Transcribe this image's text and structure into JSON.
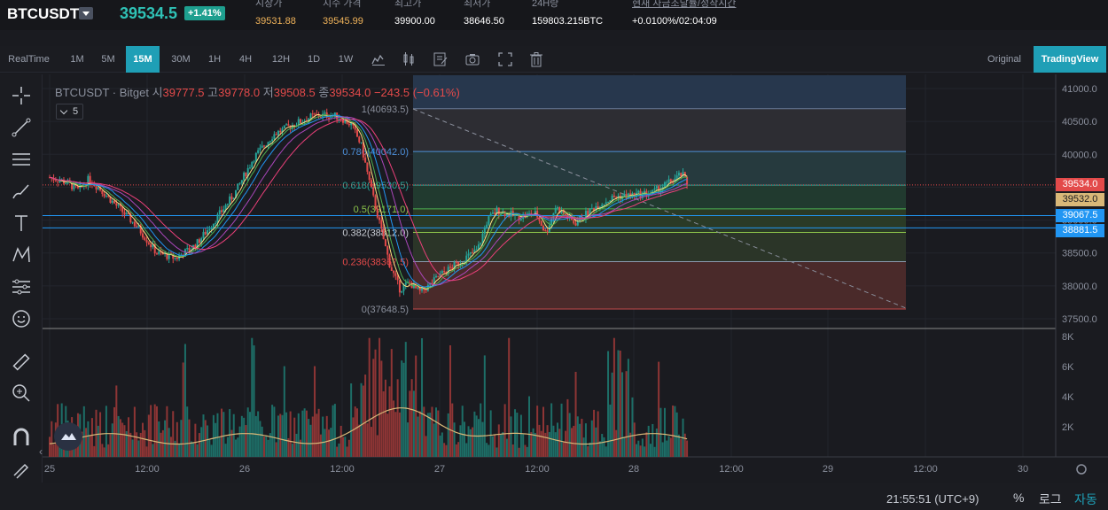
{
  "ticker": {
    "symbol": "BTCUSDT",
    "last_price": "39534.5",
    "change_pct": "+1.41%",
    "stats": [
      {
        "label": "시장가",
        "value": "39531.88",
        "color": "#f0b35a"
      },
      {
        "label": "지수 가격",
        "value": "39545.99",
        "color": "#f0b35a"
      },
      {
        "label": "최고가",
        "value": "39900.00",
        "color": "#ffffff"
      },
      {
        "label": "최저가",
        "value": "38646.50",
        "color": "#ffffff"
      },
      {
        "label": "24H량",
        "value": "159803.215BTC",
        "color": "#ffffff"
      },
      {
        "label": "현재 자금조달률/정착시간",
        "value": "+0.0100%/02:04:09",
        "color": "#ffffff"
      }
    ]
  },
  "toolbar": {
    "timeframes": [
      "RealTime",
      "1M",
      "5M",
      "15M",
      "30M",
      "1H",
      "4H",
      "12H",
      "1D",
      "1W"
    ],
    "active_timeframe": "15M",
    "icons": [
      "candle-style-icon",
      "indicator-icon",
      "edit-note-icon",
      "camera-icon",
      "fullscreen-icon",
      "trash-icon"
    ],
    "original_label": "Original",
    "tradingview_label": "TradingView"
  },
  "legend": {
    "pair": "BTCUSDT · Bitget",
    "open_label": "시",
    "open": "39777.5",
    "high_label": "고",
    "high": "39778.0",
    "low_label": "저",
    "low": "39508.5",
    "close_label": "종",
    "close": "39534.0",
    "change": "−243.5 (−0.61%)",
    "indicator_count": "5"
  },
  "chart_data": {
    "type": "candlestick",
    "price_axis": [
      "41000.0",
      "40500.0",
      "40000.0",
      "39500.0",
      "39000.0",
      "38500.0",
      "38000.0",
      "37500.0"
    ],
    "volume_axis": [
      "8K",
      "6K",
      "4K",
      "2K"
    ],
    "time_axis": [
      "25",
      "12:00",
      "26",
      "12:00",
      "27",
      "12:00",
      "28",
      "12:00",
      "29",
      "12:00",
      "30"
    ],
    "fibonacci": [
      {
        "level": "1",
        "price": "40693.5"
      },
      {
        "level": "0.786",
        "price": "40042.0"
      },
      {
        "level": "0.618",
        "price": "39530.5"
      },
      {
        "level": "0.5",
        "price": "39171.0"
      },
      {
        "level": "0.382",
        "price": "38812.0"
      },
      {
        "level": "0.236",
        "price": "38367.5"
      },
      {
        "level": "0",
        "price": "37648.5"
      }
    ],
    "price_tags": [
      {
        "value": "39534.0",
        "color": "#e34a4a"
      },
      {
        "value": "39532.0",
        "color": "#d9b878"
      },
      {
        "value": "39067.5",
        "color": "#2196f3"
      },
      {
        "value": "38881.5",
        "color": "#2196f3"
      }
    ],
    "close_path": [
      [
        25.0,
        39650
      ],
      [
        25.08,
        39580
      ],
      [
        25.15,
        39450
      ],
      [
        25.2,
        39620
      ],
      [
        25.25,
        39500
      ],
      [
        25.35,
        39200
      ],
      [
        25.45,
        38900
      ],
      [
        25.55,
        38500
      ],
      [
        25.65,
        38420
      ],
      [
        25.75,
        38620
      ],
      [
        25.85,
        39000
      ],
      [
        25.95,
        39400
      ],
      [
        26.05,
        39950
      ],
      [
        26.15,
        40300
      ],
      [
        26.25,
        40450
      ],
      [
        26.35,
        40580
      ],
      [
        26.45,
        40600
      ],
      [
        26.5,
        40550
      ],
      [
        26.55,
        40450
      ],
      [
        26.6,
        40150
      ],
      [
        26.65,
        39500
      ],
      [
        26.7,
        38900
      ],
      [
        26.75,
        38300
      ],
      [
        26.8,
        37950
      ],
      [
        26.85,
        38050
      ],
      [
        26.9,
        37900
      ],
      [
        26.95,
        38000
      ],
      [
        27.0,
        38150
      ],
      [
        27.1,
        38350
      ],
      [
        27.2,
        38550
      ],
      [
        27.25,
        39000
      ],
      [
        27.3,
        39150
      ],
      [
        27.4,
        39050
      ],
      [
        27.5,
        39100
      ],
      [
        27.55,
        38800
      ],
      [
        27.6,
        39200
      ],
      [
        27.7,
        38950
      ],
      [
        27.8,
        39200
      ],
      [
        27.9,
        39350
      ],
      [
        28.0,
        39380
      ],
      [
        28.1,
        39420
      ],
      [
        28.2,
        39600
      ],
      [
        28.25,
        39700
      ],
      [
        28.28,
        39534
      ]
    ]
  },
  "bottombar": {
    "clock": "21:55:51 (UTC+9)",
    "percent": "%",
    "log": "로그",
    "auto": "자동"
  }
}
